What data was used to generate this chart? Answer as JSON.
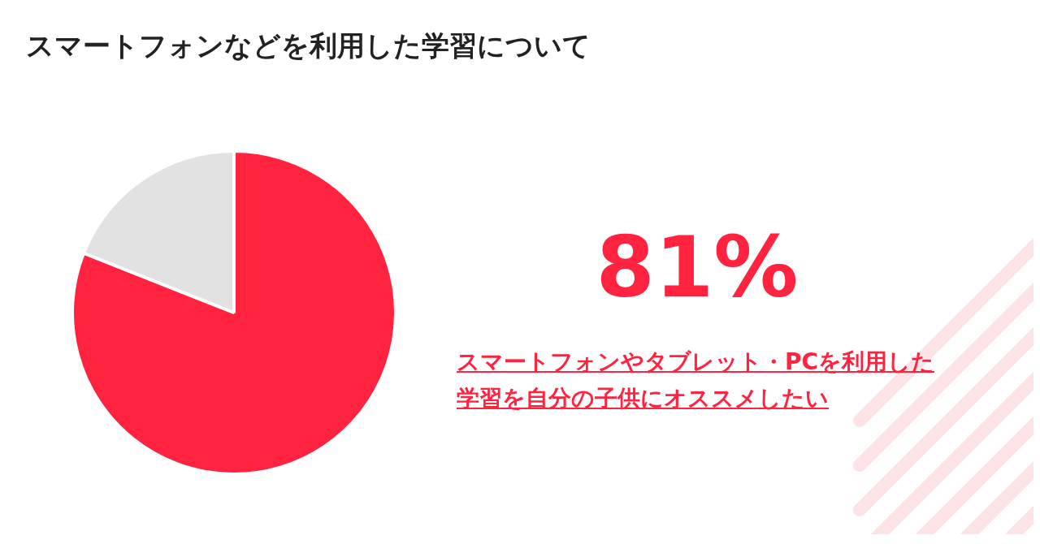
{
  "chart_data": {
    "type": "pie",
    "title": "スマートフォンなどを利用した学習について",
    "categories": [
      "スマートフォンやタブレット・PCを利用した学習を自分の子供にオススメしたい",
      null
    ],
    "values": [
      81,
      19
    ],
    "colors": [
      "#ff2340",
      "#e2e2e2"
    ],
    "value_labels": [
      "81%",
      null
    ],
    "legend": false
  }
}
